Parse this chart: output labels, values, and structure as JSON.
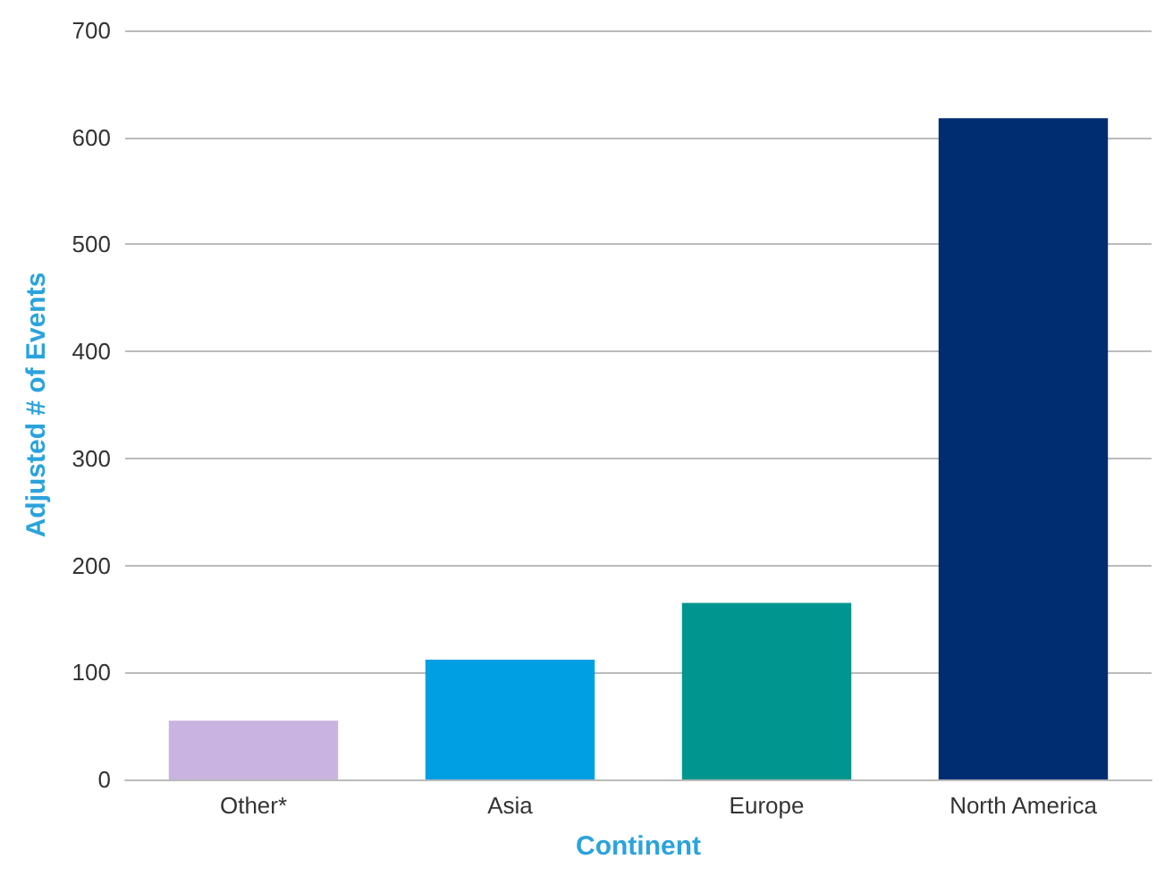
{
  "chart_data": {
    "type": "bar",
    "xlabel": "Continent",
    "ylabel": "Adjusted # of Events",
    "categories": [
      "Other*",
      "Asia",
      "Europe",
      "North America"
    ],
    "values": [
      55,
      112,
      165,
      618
    ],
    "colors": [
      "#c9b3e0",
      "#009fe3",
      "#00958f",
      "#002d72"
    ],
    "ylim": [
      0,
      700
    ],
    "yticks": [
      0,
      100,
      200,
      300,
      400,
      500,
      600,
      700
    ],
    "grid": "y"
  }
}
